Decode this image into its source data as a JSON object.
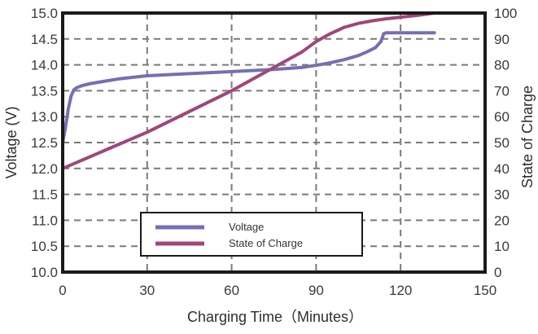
{
  "chart_data": {
    "type": "line",
    "title": "",
    "xlabel": "Charging Time（Minutes）",
    "ylabel": "Voltage (V)",
    "y2label": "State of Charge",
    "xlim": [
      0,
      150
    ],
    "ylim": [
      10.0,
      15.0
    ],
    "y2lim": [
      0,
      100
    ],
    "grid": true,
    "legend_position": "lower center",
    "x_ticks": [
      "0",
      "30",
      "60",
      "90",
      "120",
      "150"
    ],
    "y_ticks": [
      "10.0",
      "10.5",
      "11.0",
      "11.5",
      "12.0",
      "12.5",
      "13.0",
      "13.5",
      "14.0",
      "14.5",
      "15.0"
    ],
    "y2_ticks": [
      "0",
      "10",
      "20",
      "30",
      "40",
      "50",
      "60",
      "70",
      "80",
      "90",
      "100"
    ],
    "series": [
      {
        "name": "Voltage",
        "axis": "left",
        "color": "#7470b3",
        "x": [
          0,
          1,
          2,
          3,
          4,
          5,
          7,
          10,
          20,
          30,
          45,
          60,
          75,
          85,
          90,
          95,
          100,
          105,
          108,
          111,
          113,
          114,
          115,
          120,
          132
        ],
        "y": [
          12.5,
          12.8,
          13.15,
          13.4,
          13.52,
          13.56,
          13.6,
          13.64,
          13.73,
          13.79,
          13.83,
          13.87,
          13.91,
          13.95,
          13.99,
          14.04,
          14.1,
          14.18,
          14.25,
          14.33,
          14.45,
          14.6,
          14.62,
          14.62,
          14.62
        ]
      },
      {
        "name": "State of Charge",
        "axis": "right",
        "color": "#a0467a",
        "x": [
          0,
          15,
          30,
          45,
          60,
          75,
          85,
          90,
          95,
          100,
          105,
          110,
          115,
          120,
          125,
          132
        ],
        "y": [
          40,
          47,
          54,
          62,
          70,
          79,
          85,
          89,
          92,
          94.5,
          96,
          97,
          97.8,
          98.4,
          99,
          100
        ]
      }
    ]
  },
  "legend": {
    "items": [
      {
        "label": "Voltage",
        "color": "#7470b3"
      },
      {
        "label": "State of Charge",
        "color": "#a0467a"
      }
    ]
  }
}
